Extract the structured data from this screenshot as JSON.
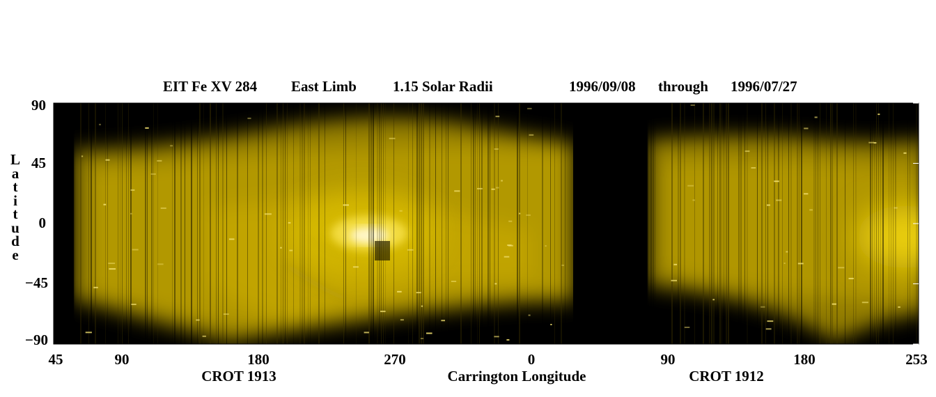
{
  "title": {
    "instrument": "EIT Fe XV 284",
    "limb": "East Limb",
    "radius": "1.15 Solar Radii",
    "start_date": "1996/09/08",
    "through": "through",
    "end_date": "1996/07/27"
  },
  "colors": {
    "background": "#000000",
    "emission": "#e0c300",
    "bright": "#fff6c8",
    "tick": "#ffffff"
  },
  "chart_data": {
    "type": "heatmap",
    "ylabel": "Latitude",
    "xlabel": "Carrington Longitude",
    "y_ticks": [
      "90",
      "45",
      "0",
      "−45",
      "−90"
    ],
    "ylim": [
      -90,
      90
    ],
    "x_ticks": [
      "45",
      "90",
      "180",
      "270",
      "0",
      "90",
      "180",
      "253"
    ],
    "rotations": [
      {
        "label": "CROT 1913",
        "lon_start": 45,
        "lon_end": 360
      },
      {
        "label": "CROT 1912",
        "lon_start": 0,
        "lon_end": 253
      }
    ],
    "data_gaps": [
      {
        "rotation": "CROT 1913",
        "lon_range": [
          45,
          60
        ]
      },
      {
        "rotation": "CROT 1913",
        "lon_range": [
          30,
          75
        ]
      }
    ],
    "features": [
      {
        "type": "bright active region",
        "rotation": "CROT 1913",
        "lon": 262,
        "lat": -10
      },
      {
        "type": "bright limb emission",
        "rotation": "CROT 1912",
        "lon": 250,
        "lat": -10
      }
    ]
  }
}
